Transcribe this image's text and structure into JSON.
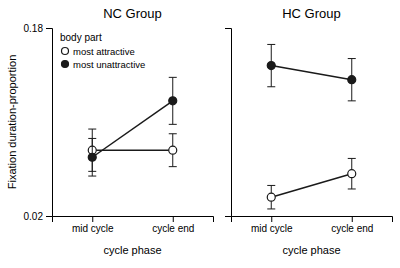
{
  "chart_data": [
    {
      "type": "line",
      "title": "NC Group",
      "ylabel": "Fixation duration-proportion",
      "xlabel": "cycle phase",
      "categories": [
        "mid cycle",
        "cycle end"
      ],
      "series": [
        {
          "name": "most attractive",
          "color": "#1a1a1a",
          "marker": "open-circle",
          "values": [
            0.076,
            0.076
          ],
          "errors": [
            0.018,
            0.014
          ]
        },
        {
          "name": "most unattractive",
          "color": "#1a1a1a",
          "marker": "filled-circle",
          "values": [
            0.07,
            0.118
          ],
          "errors": [
            0.016,
            0.02
          ]
        }
      ],
      "ylim": [
        0.02,
        0.18
      ],
      "yticks": [
        0.02,
        0.18
      ],
      "grid": false,
      "legend": "upper left",
      "legend_title": "body part"
    },
    {
      "type": "line",
      "title": "HC Group",
      "xlabel": "cycle phase",
      "categories": [
        "mid cycle",
        "cycle end"
      ],
      "series": [
        {
          "name": "most attractive",
          "color": "#1a1a1a",
          "marker": "open-circle",
          "values": [
            0.036,
            0.056
          ],
          "errors": [
            0.01,
            0.013
          ]
        },
        {
          "name": "most unattractive",
          "color": "#1a1a1a",
          "marker": "filled-circle",
          "values": [
            0.148,
            0.136
          ],
          "errors": [
            0.018,
            0.018
          ]
        }
      ],
      "ylim": [
        0.02,
        0.18
      ],
      "yticks": [
        0.02,
        0.18
      ],
      "grid": false,
      "tick_labels": "x"
    }
  ]
}
